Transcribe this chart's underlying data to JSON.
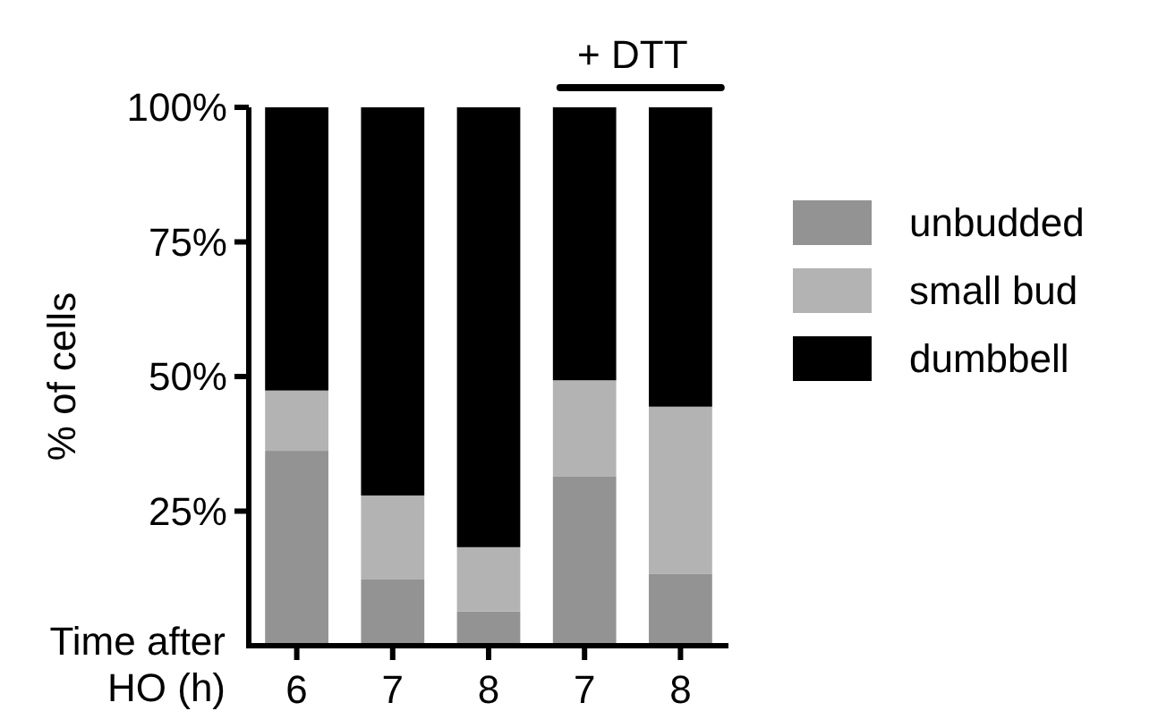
{
  "chart_data": {
    "type": "bar",
    "stacked": true,
    "ylabel": "% of cells",
    "xlabel": "Time after HO (h)",
    "categories": [
      "6",
      "7",
      "8",
      "7",
      "8"
    ],
    "series": [
      {
        "name": "unbudded",
        "color": "#939393",
        "values": [
          36.2,
          12.3,
          6.4,
          31.5,
          13.3
        ]
      },
      {
        "name": "small bud",
        "color": "#b3b3b3",
        "values": [
          11.2,
          15.6,
          11.9,
          17.8,
          31.1
        ]
      },
      {
        "name": "dumbbell",
        "color": "#000000",
        "values": [
          52.6,
          72.1,
          81.7,
          50.7,
          55.6
        ]
      }
    ],
    "ylim": [
      0,
      100
    ],
    "yticks": [
      {
        "value": 25,
        "label": "25%"
      },
      {
        "value": 50,
        "label": "50%"
      },
      {
        "value": 75,
        "label": "75%"
      },
      {
        "value": 100,
        "label": "100%"
      }
    ],
    "annotations": [
      "+ DTT"
    ],
    "legend": "right",
    "grid": false
  }
}
